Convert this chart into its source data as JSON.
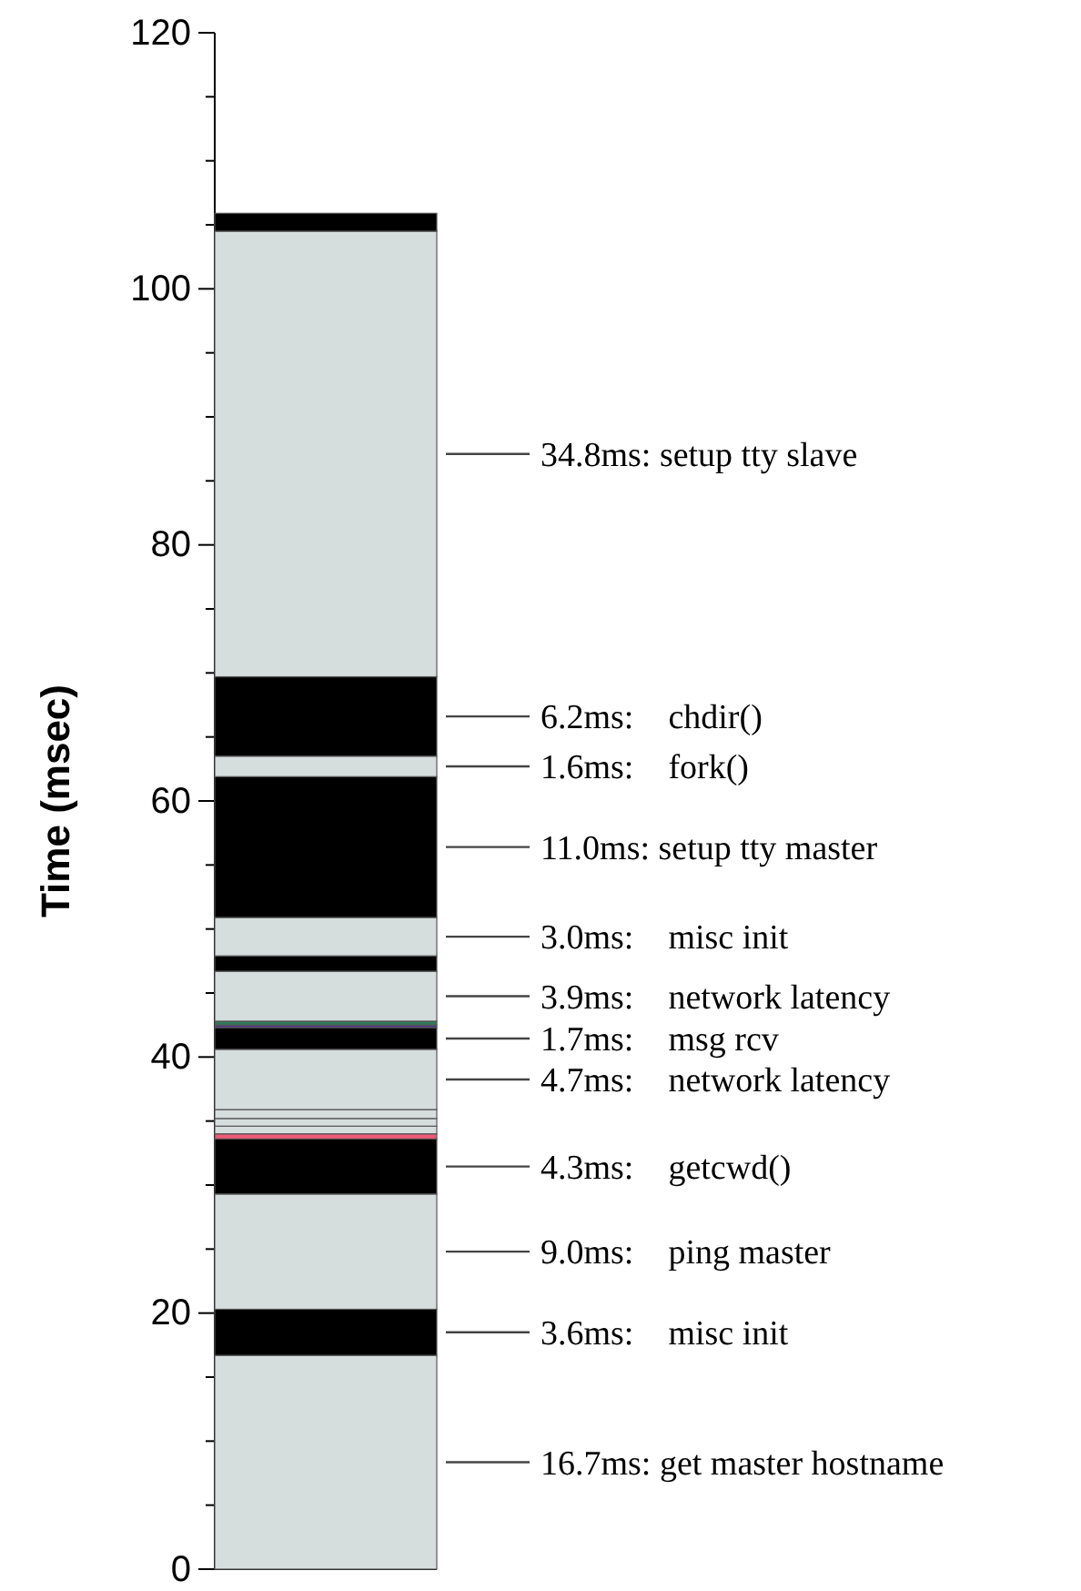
{
  "chart_data": {
    "type": "bar",
    "stacked": true,
    "categories": [
      null
    ],
    "ylabel": "Time (msec)",
    "ylim": [
      0,
      120
    ],
    "yticks": [
      0,
      {
        "value": 5,
        "label": null
      },
      {
        "value": 10,
        "label": null
      },
      {
        "value": 15,
        "label": null
      },
      20,
      {
        "value": 25,
        "label": null
      },
      {
        "value": 30,
        "label": null
      },
      {
        "value": 35,
        "label": null
      },
      40,
      {
        "value": 45,
        "label": null
      },
      {
        "value": 50,
        "label": null
      },
      {
        "value": 55,
        "label": null
      },
      60,
      {
        "value": 65,
        "label": null
      },
      {
        "value": 70,
        "label": null
      },
      {
        "value": 75,
        "label": null
      },
      80,
      {
        "value": 85,
        "label": null
      },
      {
        "value": 90,
        "label": null
      },
      {
        "value": 95,
        "label": null
      },
      100,
      {
        "value": 105,
        "label": null
      },
      {
        "value": 110,
        "label": null
      },
      {
        "value": 115,
        "label": null
      },
      120
    ],
    "tick_labels": "y",
    "series": [
      {
        "name": "get master hostname",
        "color": "#d6dedd",
        "values": [
          16.7
        ],
        "value_labels": [
          "16.7ms:"
        ]
      },
      {
        "name": "misc init",
        "color": "#000000",
        "values": [
          3.6
        ],
        "value_labels": [
          "3.6ms:"
        ]
      },
      {
        "name": "ping master",
        "color": "#d6dedd",
        "values": [
          9.0
        ],
        "value_labels": [
          "9.0ms:"
        ]
      },
      {
        "name": "getcwd()",
        "color": "#000000",
        "values": [
          4.3
        ],
        "value_labels": [
          "4.3ms:"
        ]
      },
      {
        "color": "#f05a78",
        "values": [
          0.4
        ]
      },
      {
        "color": "#d6dedd",
        "values": [
          0.6
        ]
      },
      {
        "color": "#d6dedd",
        "values": [
          0.6
        ]
      },
      {
        "color": "#d6dedd",
        "values": [
          0.7
        ]
      },
      {
        "name": "network latency",
        "color": "#d6dedd",
        "values": [
          4.7
        ],
        "value_labels": [
          "4.7ms:"
        ]
      },
      {
        "name": "msg rcv",
        "color": "#000000",
        "values": [
          1.7
        ],
        "value_labels": [
          "1.7ms:"
        ]
      },
      {
        "color": "#4b3c8c",
        "values": [
          0.2
        ]
      },
      {
        "color": "#2f7a5a",
        "values": [
          0.3
        ]
      },
      {
        "name": "network latency",
        "color": "#d6dedd",
        "values": [
          3.9
        ],
        "value_labels": [
          "3.9ms:"
        ]
      },
      {
        "color": "#000000",
        "values": [
          1.2
        ]
      },
      {
        "name": "misc init",
        "color": "#d6dedd",
        "values": [
          3.0
        ],
        "value_labels": [
          "3.0ms:"
        ]
      },
      {
        "name": "setup tty master",
        "color": "#000000",
        "values": [
          11.0
        ],
        "value_labels": [
          "11.0ms:"
        ]
      },
      {
        "name": "fork()",
        "color": "#d6dedd",
        "values": [
          1.6
        ],
        "value_labels": [
          "1.6ms:"
        ]
      },
      {
        "name": "chdir()",
        "color": "#000000",
        "values": [
          6.2
        ],
        "value_labels": [
          "6.2ms:"
        ]
      },
      {
        "name": "setup tty slave",
        "color": "#d6dedd",
        "values": [
          34.8
        ],
        "value_labels": [
          "34.8ms:"
        ]
      },
      {
        "color": "#000000",
        "values": [
          1.4
        ]
      }
    ]
  }
}
